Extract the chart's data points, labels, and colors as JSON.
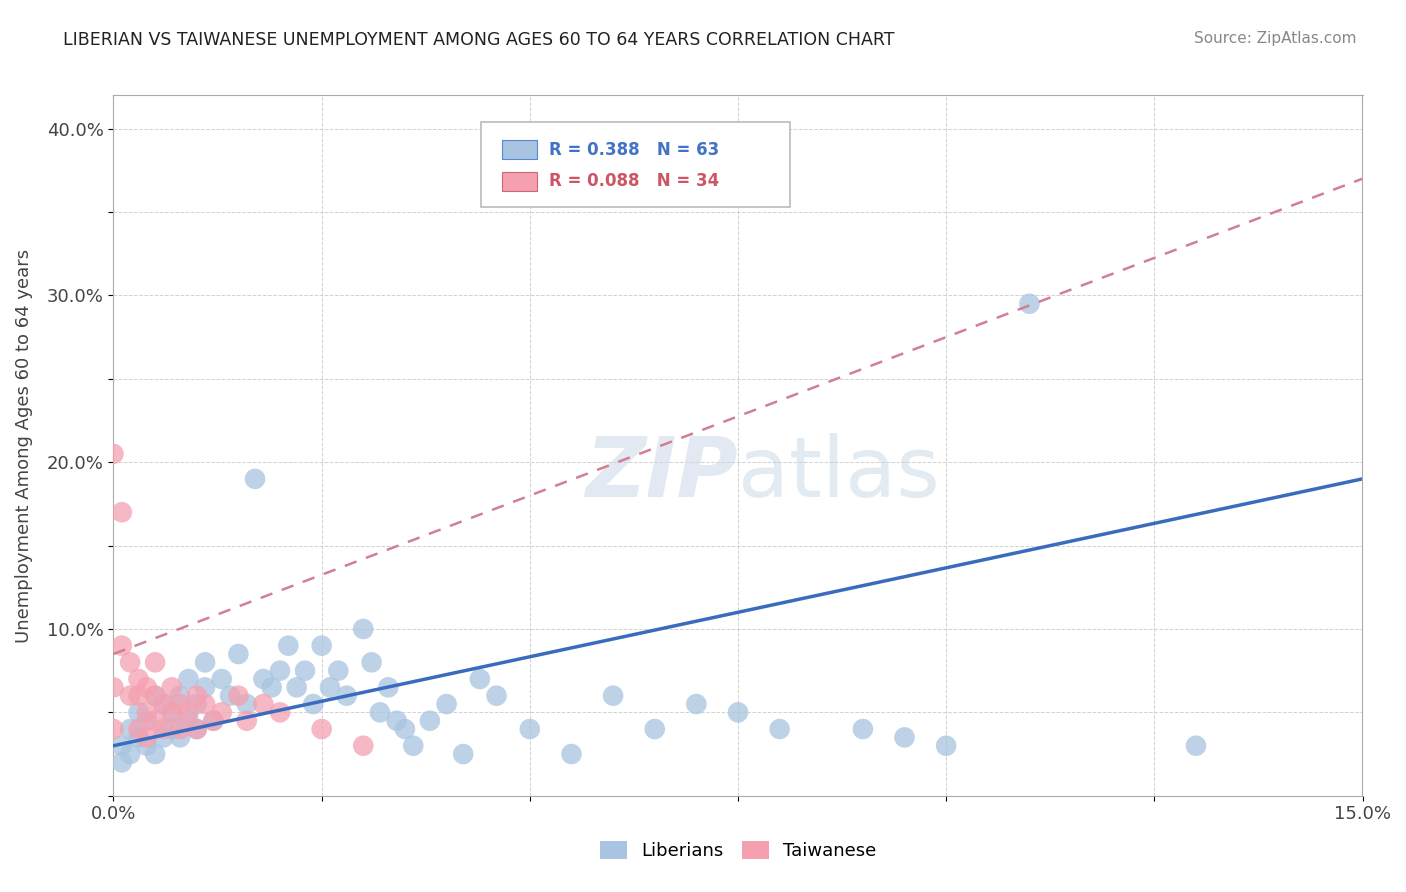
{
  "title": "LIBERIAN VS TAIWANESE UNEMPLOYMENT AMONG AGES 60 TO 64 YEARS CORRELATION CHART",
  "source": "Source: ZipAtlas.com",
  "ylabel": "Unemployment Among Ages 60 to 64 years",
  "xlim": [
    0.0,
    0.15
  ],
  "ylim": [
    0.0,
    0.42
  ],
  "x_ticks": [
    0.0,
    0.025,
    0.05,
    0.075,
    0.1,
    0.125,
    0.15
  ],
  "x_tick_labels": [
    "0.0%",
    "",
    "",
    "",
    "",
    "",
    "15.0%"
  ],
  "y_ticks": [
    0.0,
    0.05,
    0.1,
    0.15,
    0.2,
    0.25,
    0.3,
    0.35,
    0.4
  ],
  "y_tick_labels": [
    "",
    "",
    "10.0%",
    "",
    "20.0%",
    "",
    "30.0%",
    "",
    "40.0%"
  ],
  "liberian_R": 0.388,
  "liberian_N": 63,
  "taiwanese_R": 0.088,
  "taiwanese_N": 34,
  "liberian_color": "#a8c4e0",
  "liberian_line_color": "#3a6bbf",
  "taiwanese_color": "#f4a0b0",
  "taiwanese_line_color": "#d46070",
  "liberian_x": [
    0.001,
    0.001,
    0.002,
    0.002,
    0.003,
    0.003,
    0.004,
    0.004,
    0.005,
    0.005,
    0.006,
    0.006,
    0.007,
    0.007,
    0.008,
    0.008,
    0.009,
    0.009,
    0.01,
    0.01,
    0.011,
    0.011,
    0.012,
    0.013,
    0.014,
    0.015,
    0.016,
    0.017,
    0.018,
    0.019,
    0.02,
    0.021,
    0.022,
    0.023,
    0.024,
    0.025,
    0.026,
    0.027,
    0.028,
    0.03,
    0.031,
    0.032,
    0.033,
    0.034,
    0.035,
    0.036,
    0.038,
    0.04,
    0.042,
    0.044,
    0.046,
    0.05,
    0.055,
    0.06,
    0.065,
    0.07,
    0.075,
    0.08,
    0.09,
    0.095,
    0.1,
    0.11,
    0.13
  ],
  "liberian_y": [
    0.03,
    0.02,
    0.04,
    0.025,
    0.035,
    0.05,
    0.03,
    0.045,
    0.025,
    0.06,
    0.055,
    0.035,
    0.05,
    0.04,
    0.06,
    0.035,
    0.045,
    0.07,
    0.055,
    0.04,
    0.065,
    0.08,
    0.045,
    0.07,
    0.06,
    0.085,
    0.055,
    0.19,
    0.07,
    0.065,
    0.075,
    0.09,
    0.065,
    0.075,
    0.055,
    0.09,
    0.065,
    0.075,
    0.06,
    0.1,
    0.08,
    0.05,
    0.065,
    0.045,
    0.04,
    0.03,
    0.045,
    0.055,
    0.025,
    0.07,
    0.06,
    0.04,
    0.025,
    0.06,
    0.04,
    0.055,
    0.05,
    0.04,
    0.04,
    0.035,
    0.03,
    0.295,
    0.03
  ],
  "taiwanese_x": [
    0.0,
    0.0,
    0.0,
    0.001,
    0.001,
    0.002,
    0.002,
    0.003,
    0.003,
    0.003,
    0.004,
    0.004,
    0.004,
    0.005,
    0.005,
    0.005,
    0.006,
    0.006,
    0.007,
    0.007,
    0.008,
    0.008,
    0.009,
    0.01,
    0.01,
    0.011,
    0.012,
    0.013,
    0.015,
    0.016,
    0.018,
    0.02,
    0.025,
    0.03
  ],
  "taiwanese_y": [
    0.205,
    0.065,
    0.04,
    0.17,
    0.09,
    0.08,
    0.06,
    0.07,
    0.06,
    0.04,
    0.065,
    0.05,
    0.035,
    0.08,
    0.06,
    0.045,
    0.055,
    0.04,
    0.065,
    0.05,
    0.055,
    0.04,
    0.05,
    0.06,
    0.04,
    0.055,
    0.045,
    0.05,
    0.06,
    0.045,
    0.055,
    0.05,
    0.04,
    0.03
  ],
  "lib_trend_x0": 0.0,
  "lib_trend_y0": 0.03,
  "lib_trend_x1": 0.15,
  "lib_trend_y1": 0.19,
  "tai_trend_x0": 0.0,
  "tai_trend_y0": 0.085,
  "tai_trend_x1": 0.15,
  "tai_trend_y1": 0.37
}
